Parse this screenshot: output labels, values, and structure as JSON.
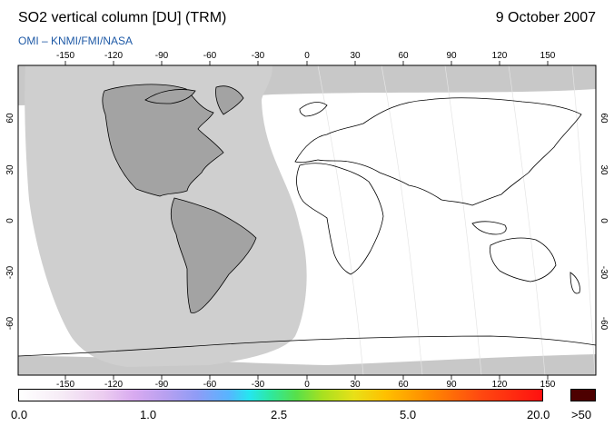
{
  "header": {
    "title": "SO2 vertical column [DU] (TRM)",
    "date": "9 October 2007",
    "credit": "OMI  –  KNMI/FMI/NASA"
  },
  "map": {
    "lon_ticks": [
      "-150",
      "-120",
      "-90",
      "-60",
      "-30",
      "0",
      "30",
      "60",
      "90",
      "120",
      "150"
    ],
    "lat_ticks": [
      "60",
      "30",
      "0",
      "-30",
      "-60"
    ],
    "colors": {
      "night_region": "#c8c8c8",
      "land_night": "#a3a3a3",
      "no_data": "#c8c8c8",
      "coastline": "#000000"
    }
  },
  "colorbar": {
    "labels": [
      "0.0",
      "1.0",
      "2.5",
      "5.0",
      "20.0",
      ">50"
    ],
    "over_color": "#4d0000"
  }
}
